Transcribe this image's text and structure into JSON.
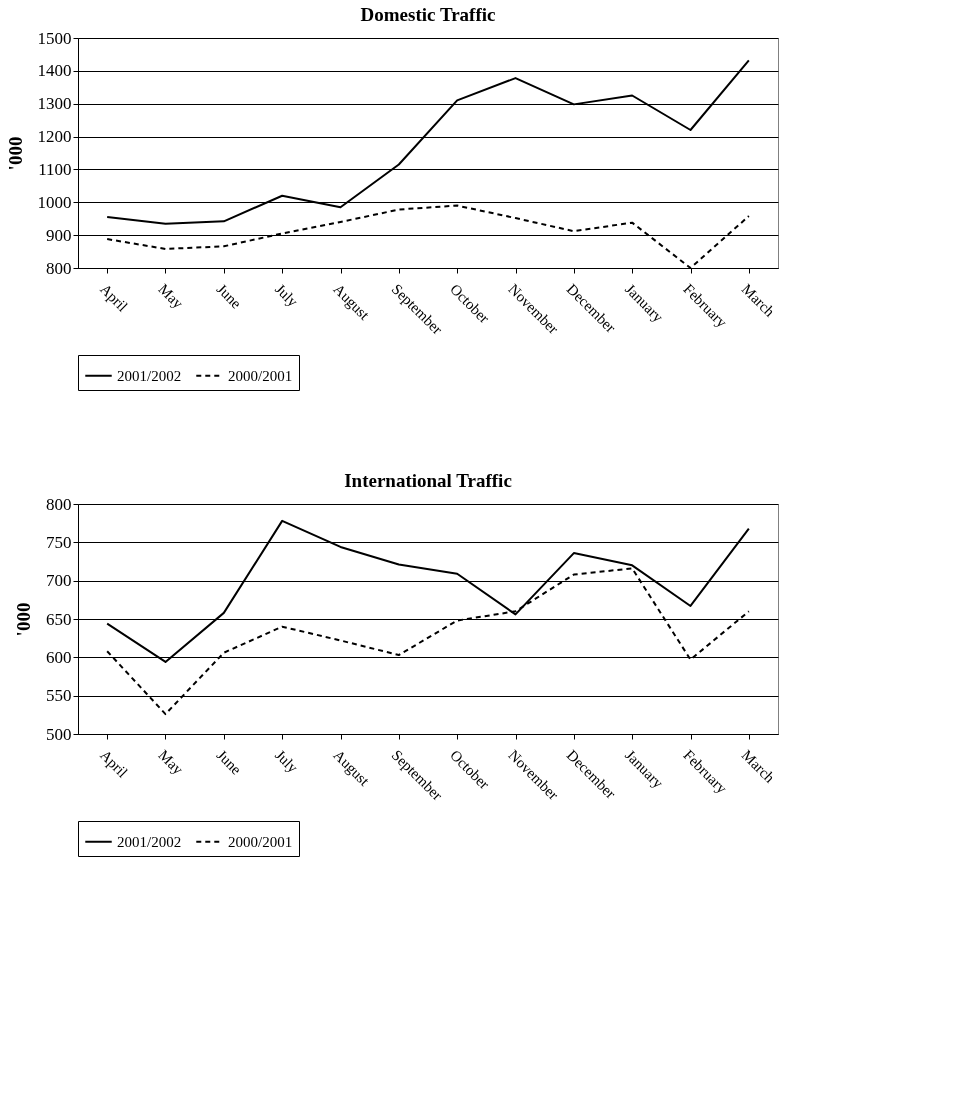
{
  "chart_data": [
    {
      "type": "line",
      "title": "Domestic Traffic",
      "ylabel": "'000",
      "categories": [
        "April",
        "May",
        "June",
        "July",
        "August",
        "September",
        "October",
        "November",
        "December",
        "January",
        "February",
        "March"
      ],
      "series": [
        {
          "name": "2001/2002",
          "color": "#000000",
          "line_style": "solid",
          "values": [
            955,
            935,
            942,
            1020,
            985,
            1115,
            1310,
            1378,
            1298,
            1325,
            1220,
            1432
          ]
        },
        {
          "name": "2000/2001",
          "color": "#000000",
          "line_style": "dashed",
          "values": [
            888,
            858,
            866,
            905,
            940,
            978,
            990,
            952,
            912,
            938,
            800,
            958
          ]
        }
      ],
      "ylim": [
        800,
        1500
      ],
      "yticks": [
        800,
        900,
        1000,
        1100,
        1200,
        1300,
        1400,
        1500
      ],
      "grid": "y",
      "legend": "bottom left",
      "marker": "none"
    },
    {
      "type": "line",
      "title": "International Traffic",
      "ylabel": "'000",
      "categories": [
        "April",
        "May",
        "June",
        "July",
        "August",
        "September",
        "October",
        "November",
        "December",
        "January",
        "February",
        "March"
      ],
      "series": [
        {
          "name": "2001/2002",
          "color": "#000000",
          "line_style": "solid",
          "values": [
            644,
            594,
            658,
            778,
            744,
            721,
            709,
            656,
            736,
            720,
            667,
            768
          ]
        },
        {
          "name": "2000/2001",
          "color": "#000000",
          "line_style": "dashed",
          "values": [
            608,
            526,
            606,
            640,
            622,
            603,
            648,
            660,
            708,
            716,
            597,
            660
          ]
        }
      ],
      "ylim": [
        500,
        800
      ],
      "yticks": [
        500,
        550,
        600,
        650,
        700,
        750,
        800
      ],
      "grid": "y",
      "legend": "bottom left",
      "marker": "none"
    }
  ]
}
